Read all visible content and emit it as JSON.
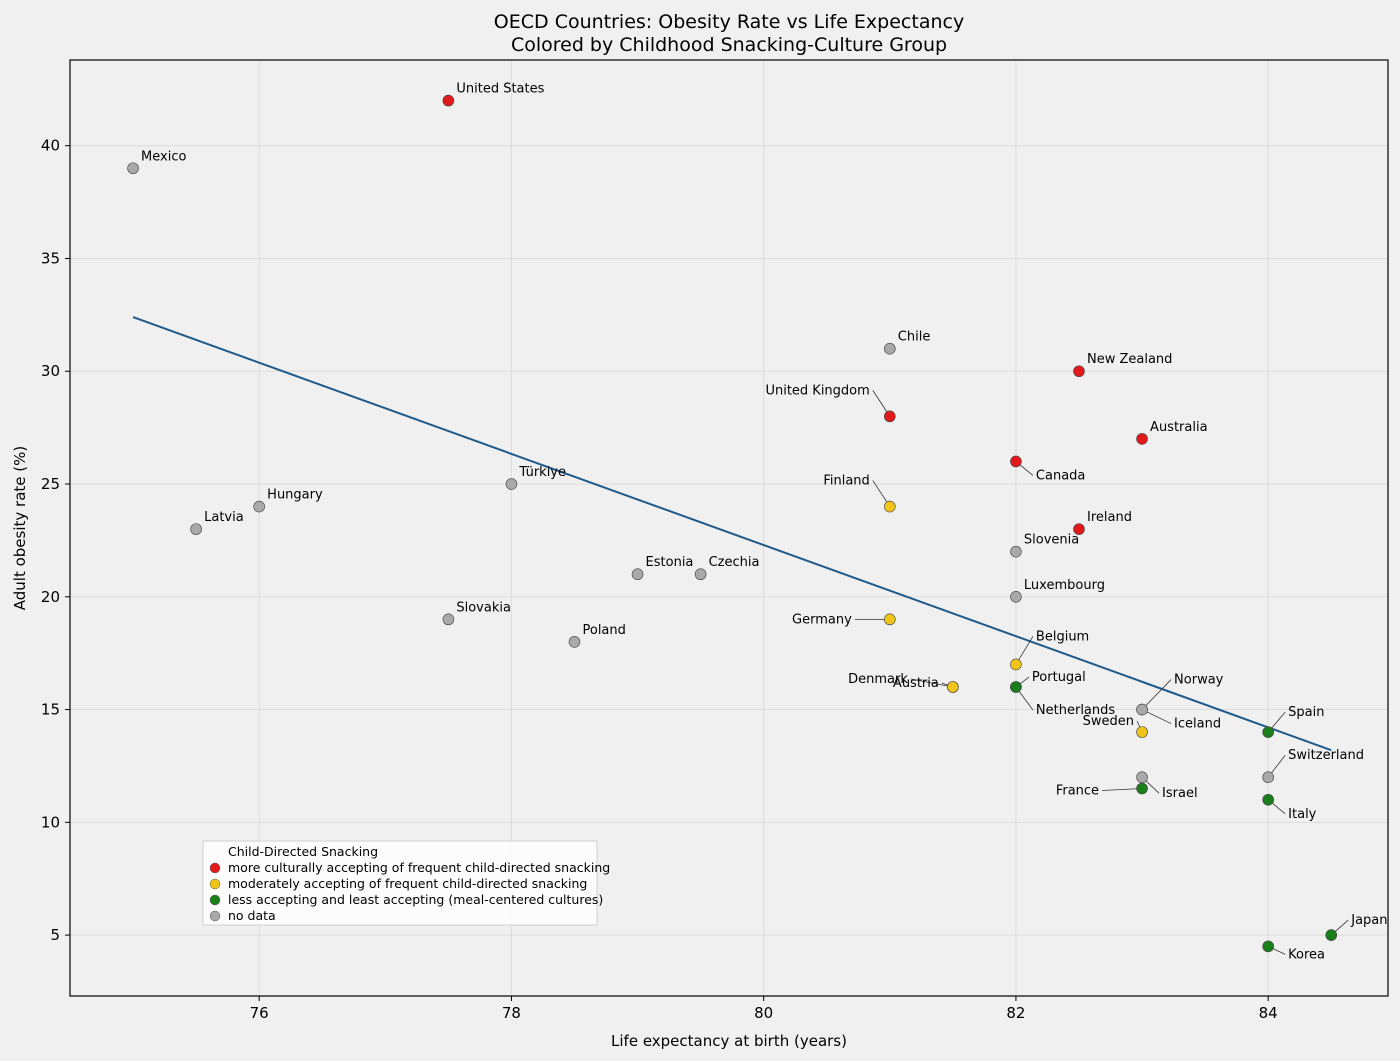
{
  "chart_data": {
    "type": "scatter",
    "title": "OECD Countries: Obesity Rate vs Life Expectancy",
    "subtitle": "Colored by Childhood Snacking-Culture Group",
    "xlabel": "Life expectancy at birth (years)",
    "ylabel": "Adult obesity rate (%)",
    "xlim": [
      74.5,
      84.95
    ],
    "ylim": [
      2.3,
      43.8
    ],
    "xticks": [
      76,
      78,
      80,
      82,
      84
    ],
    "yticks": [
      5,
      10,
      15,
      20,
      25,
      30,
      35,
      40
    ],
    "grid": true,
    "legend": {
      "placement": "lower-left",
      "title": "Child-Directed Snacking",
      "entries": [
        {
          "label": "more culturally accepting of frequent child-directed snacking",
          "color": "#e31a1c"
        },
        {
          "label": "moderately accepting of frequent child-directed snacking",
          "color": "#f0c419"
        },
        {
          "label": "less accepting and least accepting (meal-centered cultures)",
          "color": "#1a7f1a"
        },
        {
          "label": "no data",
          "color": "#a9a9a9"
        }
      ]
    },
    "trendline": {
      "x": [
        75.0,
        84.5
      ],
      "y": [
        32.4,
        13.2
      ],
      "color": "#1f5a8a"
    },
    "points": [
      {
        "name": "United States",
        "x": 77.5,
        "y": 42,
        "group": 0,
        "lpos": "ur"
      },
      {
        "name": "Mexico",
        "x": 75.0,
        "y": 39,
        "group": 3,
        "lpos": "ur"
      },
      {
        "name": "Chile",
        "x": 81.0,
        "y": 31,
        "group": 3,
        "lpos": "ur"
      },
      {
        "name": "New Zealand",
        "x": 82.5,
        "y": 30,
        "group": 0,
        "lpos": "ur"
      },
      {
        "name": "United Kingdom",
        "x": 81.0,
        "y": 28,
        "group": 0,
        "lpos": "ul"
      },
      {
        "name": "Australia",
        "x": 83.0,
        "y": 27,
        "group": 0,
        "lpos": "ur"
      },
      {
        "name": "Canada",
        "x": 82.0,
        "y": 26,
        "group": 0,
        "lpos": "dr"
      },
      {
        "name": "Türkiye",
        "x": 78.0,
        "y": 25,
        "group": 3,
        "lpos": "ur"
      },
      {
        "name": "Hungary",
        "x": 76.0,
        "y": 24,
        "group": 3,
        "lpos": "ur"
      },
      {
        "name": "Finland",
        "x": 81.0,
        "y": 24,
        "group": 1,
        "lpos": "ul"
      },
      {
        "name": "Latvia",
        "x": 75.5,
        "y": 23,
        "group": 3,
        "lpos": "ur"
      },
      {
        "name": "Ireland",
        "x": 82.5,
        "y": 23,
        "group": 0,
        "lpos": "ur"
      },
      {
        "name": "Slovenia",
        "x": 82.0,
        "y": 22,
        "group": 3,
        "lpos": "ur"
      },
      {
        "name": "Estonia",
        "x": 79.0,
        "y": 21,
        "group": 3,
        "lpos": "ur"
      },
      {
        "name": "Czechia",
        "x": 79.5,
        "y": 21,
        "group": 3,
        "lpos": "ur"
      },
      {
        "name": "Luxembourg",
        "x": 82.0,
        "y": 20,
        "group": 3,
        "lpos": "ur"
      },
      {
        "name": "Slovakia",
        "x": 77.5,
        "y": 19,
        "group": 3,
        "lpos": "ur"
      },
      {
        "name": "Germany",
        "x": 81.0,
        "y": 19,
        "group": 1,
        "lpos": "l"
      },
      {
        "name": "Poland",
        "x": 78.5,
        "y": 18,
        "group": 3,
        "lpos": "ur"
      },
      {
        "name": "Belgium",
        "x": 82.0,
        "y": 17,
        "group": 1,
        "lpos": "ur"
      },
      {
        "name": "Austria",
        "x": 81.5,
        "y": 16,
        "group": 1,
        "lpos": "ur"
      },
      {
        "name": "Denmark",
        "x": 81.5,
        "y": 16,
        "group": 1,
        "lpos": "ul"
      },
      {
        "name": "Portugal",
        "x": 82.0,
        "y": 16,
        "group": 2,
        "lpos": "ur"
      },
      {
        "name": "Netherlands",
        "x": 82.0,
        "y": 16,
        "group": 2,
        "lpos": "dr"
      },
      {
        "name": "Norway",
        "x": 83.0,
        "y": 15,
        "group": 3,
        "lpos": "ur"
      },
      {
        "name": "Iceland",
        "x": 83.0,
        "y": 15,
        "group": 3,
        "lpos": "dr"
      },
      {
        "name": "Sweden",
        "x": 83.0,
        "y": 14,
        "group": 1,
        "lpos": "ul"
      },
      {
        "name": "Spain",
        "x": 84.0,
        "y": 14,
        "group": 2,
        "lpos": "ur"
      },
      {
        "name": "Switzerland",
        "x": 84.0,
        "y": 12,
        "group": 3,
        "lpos": "ur"
      },
      {
        "name": "Israel",
        "x": 83.0,
        "y": 12,
        "group": 3,
        "lpos": "dr"
      },
      {
        "name": "France",
        "x": 83.0,
        "y": 11.5,
        "group": 2,
        "lpos": "l"
      },
      {
        "name": "Italy",
        "x": 84.0,
        "y": 11,
        "group": 2,
        "lpos": "dr"
      },
      {
        "name": "Japan",
        "x": 84.5,
        "y": 5,
        "group": 2,
        "lpos": "ur"
      },
      {
        "name": "Korea",
        "x": 84.0,
        "y": 4.5,
        "group": 2,
        "lpos": "dr"
      }
    ]
  }
}
